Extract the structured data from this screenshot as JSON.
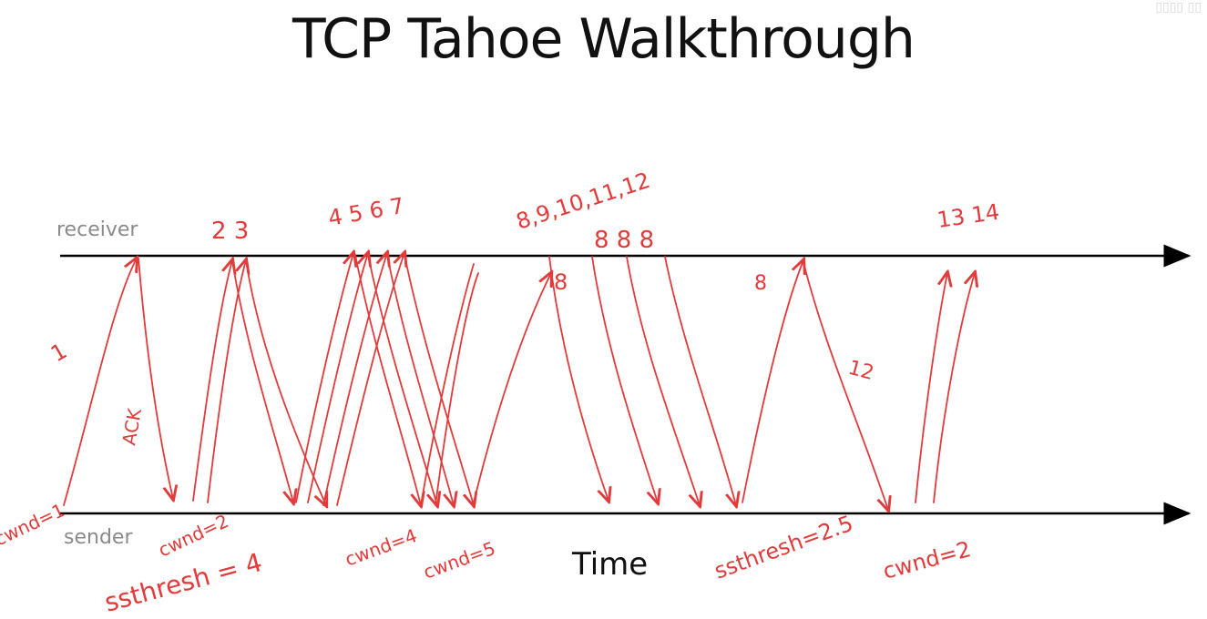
{
  "title": "TCP Tahoe Walkthrough",
  "labels": {
    "receiver": "receiver",
    "sender": "sender",
    "time": "Time"
  },
  "colors": {
    "axis": "#000000",
    "ink": "#e23b3b",
    "label": "#8a8a8a"
  },
  "annotations": {
    "packet_1": "1",
    "ack": "ACK",
    "cwnd_1": "cwnd=1",
    "pkts_2_3": "2 3",
    "cwnd_2": "cwnd=2",
    "ssthresh_4": "ssthresh = 4",
    "pkts_4_7": "4 5 6 7",
    "cwnd_4": "cwnd=4",
    "cwnd_5": "cwnd=5",
    "pkts_8_12": "8,9,10,11,12",
    "recv_8": "8",
    "acks_8": "8  8  8",
    "retx_8": "8",
    "ack_12": "12",
    "ssthresh_2_5": "ssthresh=2.5",
    "cwnd_after": "cwnd=2",
    "pkts_13_14": "13 14"
  }
}
